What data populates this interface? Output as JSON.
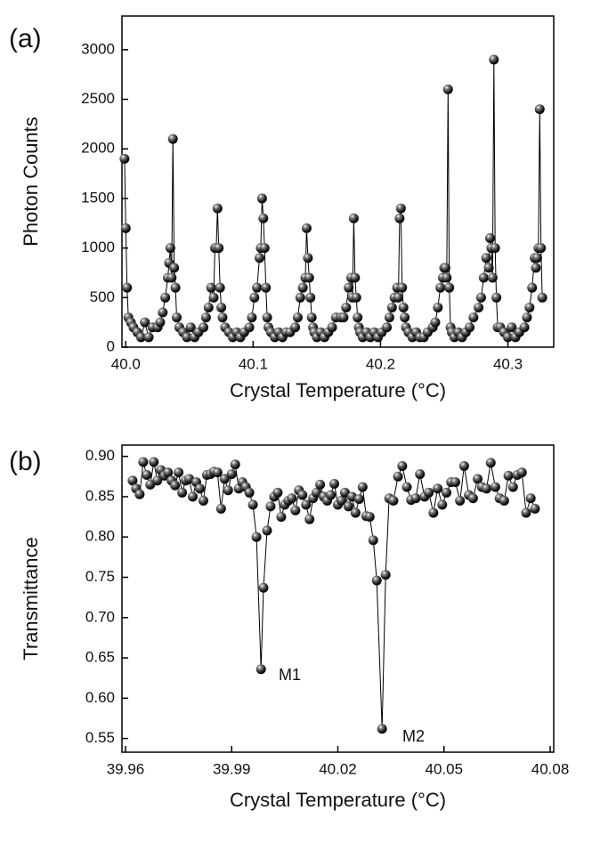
{
  "chart_data": [
    {
      "type": "line",
      "panel_label": "(a)",
      "xlabel": "Crystal Temperature (°C)",
      "ylabel": "Photon Counts",
      "x": [
        39.999,
        40.0,
        40.001,
        40.002,
        40.004,
        40.006,
        40.009,
        40.012,
        40.015,
        40.018,
        40.021,
        40.025,
        40.027,
        40.029,
        40.031,
        40.033,
        40.034,
        40.035,
        40.036,
        40.037,
        40.038,
        40.039,
        40.04,
        40.042,
        40.045,
        40.048,
        40.051,
        40.054,
        40.057,
        40.061,
        40.063,
        40.065,
        40.067,
        40.069,
        40.07,
        40.071,
        40.072,
        40.073,
        40.074,
        40.075,
        40.076,
        40.078,
        40.081,
        40.084,
        40.087,
        40.09,
        40.093,
        40.097,
        40.099,
        40.101,
        40.103,
        40.105,
        40.106,
        40.107,
        40.108,
        40.109,
        40.11,
        40.111,
        40.112,
        40.114,
        40.117,
        40.12,
        40.123,
        40.126,
        40.129,
        40.133,
        40.135,
        40.137,
        40.139,
        40.141,
        40.142,
        40.143,
        40.144,
        40.145,
        40.146,
        40.147,
        40.148,
        40.15,
        40.153,
        40.156,
        40.159,
        40.162,
        40.165,
        40.169,
        40.171,
        40.173,
        40.175,
        40.177,
        40.178,
        40.179,
        40.18,
        40.181,
        40.182,
        40.183,
        40.184,
        40.186,
        40.189,
        40.192,
        40.195,
        40.198,
        40.201,
        40.205,
        40.207,
        40.209,
        40.211,
        40.213,
        40.214,
        40.215,
        40.216,
        40.217,
        40.218,
        40.219,
        40.22,
        40.222,
        40.225,
        40.228,
        40.231,
        40.234,
        40.237,
        40.241,
        40.243,
        40.245,
        40.247,
        40.249,
        40.25,
        40.251,
        40.252,
        40.253,
        40.254,
        40.255,
        40.256,
        40.258,
        40.261,
        40.264,
        40.267,
        40.27,
        40.273,
        40.277,
        40.279,
        40.281,
        40.283,
        40.285,
        40.286,
        40.287,
        40.288,
        40.289,
        40.29,
        40.291,
        40.292,
        40.294,
        40.297,
        40.3,
        40.303,
        40.306,
        40.309,
        40.313,
        40.315,
        40.317,
        40.319,
        40.321,
        40.322,
        40.323,
        40.324,
        40.325,
        40.326,
        40.327
      ],
      "series": [
        {
          "color": "#000000",
          "values": [
            1900,
            1200,
            600,
            300,
            250,
            200,
            150,
            100,
            250,
            100,
            200,
            200,
            250,
            350,
            500,
            700,
            850,
            1000,
            700,
            2100,
            800,
            600,
            300,
            200,
            150,
            100,
            200,
            100,
            150,
            200,
            300,
            400,
            600,
            500,
            1000,
            1000,
            1400,
            1000,
            600,
            400,
            300,
            200,
            150,
            100,
            150,
            100,
            150,
            200,
            300,
            500,
            600,
            900,
            1000,
            1500,
            1300,
            1000,
            600,
            300,
            200,
            150,
            100,
            150,
            100,
            150,
            150,
            200,
            300,
            500,
            600,
            700,
            1200,
            900,
            700,
            500,
            300,
            200,
            150,
            100,
            150,
            100,
            150,
            200,
            300,
            300,
            300,
            400,
            600,
            700,
            500,
            1300,
            700,
            500,
            300,
            200,
            150,
            100,
            150,
            100,
            150,
            100,
            150,
            200,
            300,
            400,
            500,
            600,
            500,
            1300,
            1400,
            600,
            400,
            300,
            200,
            150,
            100,
            150,
            100,
            100,
            150,
            200,
            250,
            400,
            600,
            700,
            800,
            800,
            700,
            2600,
            600,
            200,
            150,
            100,
            150,
            100,
            150,
            200,
            300,
            400,
            500,
            700,
            900,
            800,
            1100,
            1000,
            700,
            2900,
            1000,
            500,
            200,
            200,
            150,
            100,
            200,
            100,
            150,
            200,
            300,
            400,
            600,
            900,
            800,
            900,
            1000,
            2400,
            1000,
            500
          ]
        }
      ],
      "xlim": [
        39.997,
        40.336
      ],
      "ylim": [
        0,
        3340
      ],
      "xticks": [
        {
          "value": 40.0,
          "label": "40.0"
        },
        40.1,
        40.2,
        40.3
      ],
      "yticks": [
        0,
        500,
        1000,
        1500,
        2000,
        2500,
        3000
      ]
    },
    {
      "type": "line",
      "panel_label": "(b)",
      "xlabel": "Crystal Temperature (°C)",
      "ylabel": "Transmittance",
      "x": [
        39.962,
        39.963,
        39.964,
        39.965,
        39.966,
        39.967,
        39.968,
        39.969,
        39.97,
        39.971,
        39.972,
        39.973,
        39.974,
        39.975,
        39.976,
        39.977,
        39.978,
        39.979,
        39.98,
        39.981,
        39.982,
        39.983,
        39.984,
        39.985,
        39.986,
        39.987,
        39.988,
        39.989,
        39.99,
        39.991,
        39.992,
        39.993,
        39.994,
        39.995,
        39.996,
        39.997,
        39.9983,
        39.999,
        40.0,
        40.001,
        40.002,
        40.003,
        40.004,
        40.005,
        40.006,
        40.007,
        40.008,
        40.009,
        40.01,
        40.011,
        40.012,
        40.013,
        40.014,
        40.015,
        40.016,
        40.017,
        40.018,
        40.019,
        40.02,
        40.021,
        40.022,
        40.023,
        40.024,
        40.025,
        40.026,
        40.027,
        40.028,
        40.029,
        40.03,
        40.031,
        40.0325,
        40.0335,
        40.0345,
        40.0357,
        40.037,
        40.0382,
        40.0395,
        40.0407,
        40.042,
        40.0432,
        40.0445,
        40.0457,
        40.047,
        40.0482,
        40.0495,
        40.0507,
        40.052,
        40.0532,
        40.0545,
        40.0557,
        40.057,
        40.0582,
        40.0595,
        40.0607,
        40.062,
        40.0632,
        40.0645,
        40.0657,
        40.067,
        40.0682,
        40.0695,
        40.0707,
        40.072,
        40.0732,
        40.0745,
        40.0757
      ],
      "series": [
        {
          "color": "#000000",
          "values": [
            0.87,
            0.86,
            0.853,
            0.893,
            0.877,
            0.865,
            0.893,
            0.87,
            0.883,
            0.876,
            0.88,
            0.87,
            0.864,
            0.88,
            0.855,
            0.87,
            0.872,
            0.85,
            0.868,
            0.86,
            0.845,
            0.877,
            0.878,
            0.881,
            0.88,
            0.835,
            0.872,
            0.858,
            0.878,
            0.89,
            0.86,
            0.868,
            0.862,
            0.855,
            0.84,
            0.8,
            0.636,
            0.737,
            0.808,
            0.838,
            0.85,
            0.855,
            0.825,
            0.84,
            0.845,
            0.848,
            0.833,
            0.858,
            0.852,
            0.84,
            0.822,
            0.848,
            0.855,
            0.865,
            0.85,
            0.845,
            0.852,
            0.866,
            0.84,
            0.845,
            0.855,
            0.838,
            0.85,
            0.83,
            0.847,
            0.862,
            0.826,
            0.825,
            0.796,
            0.746,
            0.562,
            0.753,
            0.848,
            0.845,
            0.875,
            0.888,
            0.862,
            0.846,
            0.848,
            0.878,
            0.85,
            0.855,
            0.83,
            0.86,
            0.84,
            0.855,
            0.868,
            0.868,
            0.845,
            0.888,
            0.852,
            0.848,
            0.872,
            0.862,
            0.86,
            0.892,
            0.862,
            0.848,
            0.845,
            0.876,
            0.862,
            0.877,
            0.88,
            0.83,
            0.848,
            0.835
          ]
        }
      ],
      "xlim": [
        39.959,
        40.081
      ],
      "ylim": [
        0.533,
        0.914
      ],
      "xticks": [
        39.96,
        39.99,
        40.02,
        40.05,
        40.08
      ],
      "yticks": [
        {
          "value": 0.9,
          "label": "0.90"
        },
        0.85,
        {
          "value": 0.8,
          "label": "0.80"
        },
        0.75,
        {
          "value": 0.7,
          "label": "0.70"
        },
        0.65,
        {
          "value": 0.6,
          "label": "0.60"
        },
        0.55
      ],
      "annotations": [
        "M1",
        "M2"
      ]
    }
  ]
}
